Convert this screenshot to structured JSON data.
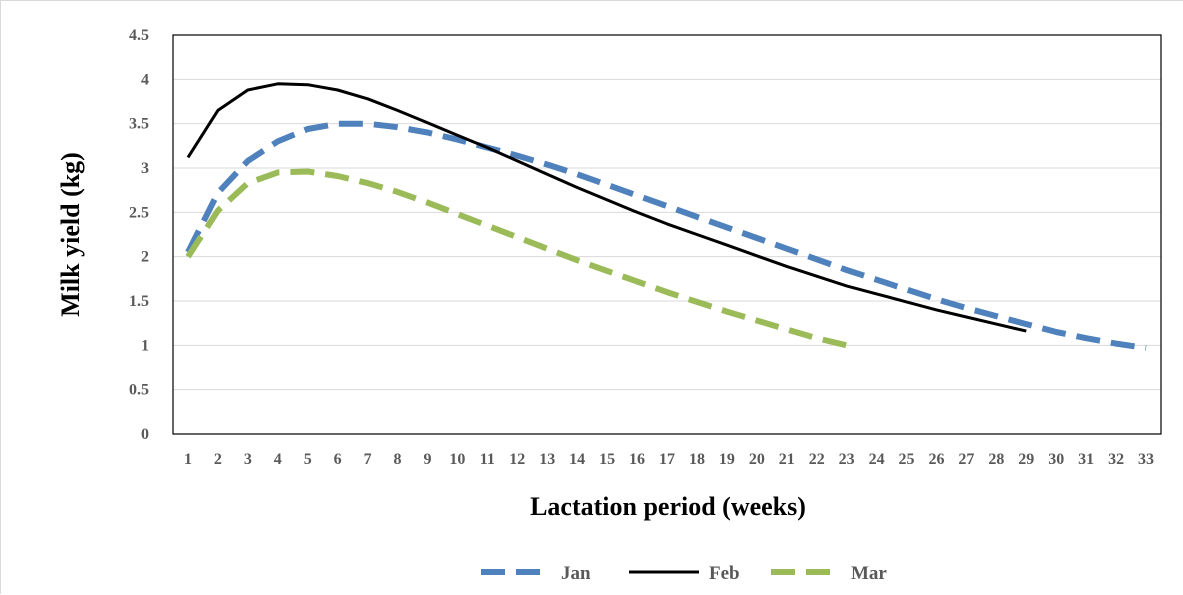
{
  "chart_data": {
    "type": "line",
    "xlabel": "Lactation period (weeks)",
    "ylabel": "Milk yield (kg)",
    "ylim": [
      0,
      4.5
    ],
    "y_ticks": [
      "0",
      "0.5",
      "1",
      "1.5",
      "2",
      "2.5",
      "3",
      "3.5",
      "4",
      "4.5"
    ],
    "x_categories": [
      "1",
      "2",
      "3",
      "4",
      "5",
      "6",
      "7",
      "8",
      "9",
      "10",
      "11",
      "12",
      "13",
      "14",
      "15",
      "16",
      "17",
      "18",
      "19",
      "20",
      "21",
      "22",
      "23",
      "24",
      "25",
      "26",
      "27",
      "28",
      "29",
      "30",
      "31",
      "32",
      "33"
    ],
    "grid": "horizontal",
    "legend_position": "bottom",
    "series": [
      {
        "name": "Jan",
        "color": "#4f81bd",
        "style": "dashed",
        "values": [
          2.05,
          2.72,
          3.08,
          3.3,
          3.44,
          3.5,
          3.5,
          3.46,
          3.4,
          3.32,
          3.23,
          3.14,
          3.04,
          2.93,
          2.81,
          2.69,
          2.57,
          2.45,
          2.33,
          2.21,
          2.09,
          1.97,
          1.85,
          1.74,
          1.63,
          1.52,
          1.42,
          1.33,
          1.24,
          1.15,
          1.08,
          1.02,
          0.97
        ]
      },
      {
        "name": "Feb",
        "color": "#000000",
        "style": "solid",
        "values": [
          3.12,
          3.65,
          3.88,
          3.95,
          3.94,
          3.88,
          3.78,
          3.65,
          3.51,
          3.37,
          3.23,
          3.08,
          2.93,
          2.78,
          2.64,
          2.5,
          2.37,
          2.25,
          2.13,
          2.01,
          1.89,
          1.78,
          1.67,
          1.58,
          1.49,
          1.4,
          1.32,
          1.24,
          1.16
        ]
      },
      {
        "name": "Mar",
        "color": "#9bbb59",
        "style": "dashed",
        "values": [
          2.0,
          2.52,
          2.83,
          2.95,
          2.96,
          2.91,
          2.83,
          2.73,
          2.61,
          2.48,
          2.35,
          2.22,
          2.09,
          1.96,
          1.84,
          1.72,
          1.6,
          1.49,
          1.38,
          1.28,
          1.18,
          1.08,
          1.0
        ]
      }
    ]
  }
}
